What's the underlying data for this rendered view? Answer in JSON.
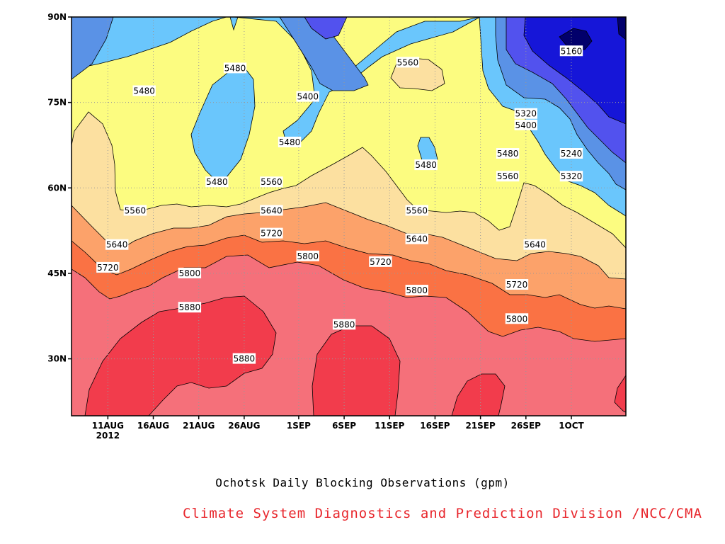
{
  "title": "Ochotsk Daily Blocking Observations (gpm)",
  "credit": "Climate System Diagnostics and Prediction Division /NCC/CMA",
  "colors": {
    "credit": "#e8262c",
    "levels": [
      "#02006b",
      "#1616d8",
      "#5252ee",
      "#5a92e6",
      "#6ac6fc",
      "#fcfc80",
      "#fce0a0",
      "#fca26a",
      "#fa7244",
      "#f5707a",
      "#f23c4c"
    ]
  },
  "chart_data": {
    "type": "contour",
    "title": "Ochotsk Daily Blocking Observations (gpm)",
    "xlabel": "",
    "ylabel": "",
    "x_ticks": [
      "11AUG",
      "16AUG",
      "21AUG",
      "26AUG",
      "1SEP",
      "6SEP",
      "11SEP",
      "16SEP",
      "21SEP",
      "26SEP",
      "1OCT"
    ],
    "x_year_label": "2012",
    "y_ticks": [
      "30N",
      "45N",
      "60N",
      "75N",
      "90N"
    ],
    "ylim": [
      20,
      90
    ],
    "grid": "dotted",
    "levels": [
      5160,
      5240,
      5320,
      5400,
      5480,
      5560,
      5640,
      5720,
      5800,
      5880
    ],
    "contour_labels": [
      {
        "value": "5160",
        "date": "2012-10-01",
        "lat": 84
      },
      {
        "value": "5240",
        "date": "2012-10-01",
        "lat": 66
      },
      {
        "value": "5320",
        "date": "2012-09-26",
        "lat": 73
      },
      {
        "value": "5320",
        "date": "2012-10-01",
        "lat": 62
      },
      {
        "value": "5400",
        "date": "2012-09-02",
        "lat": 76
      },
      {
        "value": "5400",
        "date": "2012-09-26",
        "lat": 71
      },
      {
        "value": "5480",
        "date": "2012-08-15",
        "lat": 77
      },
      {
        "value": "5480",
        "date": "2012-08-25",
        "lat": 81
      },
      {
        "value": "5480",
        "date": "2012-08-31",
        "lat": 68
      },
      {
        "value": "5480",
        "date": "2012-08-23",
        "lat": 61
      },
      {
        "value": "5480",
        "date": "2012-09-15",
        "lat": 64
      },
      {
        "value": "5480",
        "date": "2012-09-24",
        "lat": 66
      },
      {
        "value": "5560",
        "date": "2012-09-13",
        "lat": 82
      },
      {
        "value": "5560",
        "date": "2012-08-14",
        "lat": 56
      },
      {
        "value": "5560",
        "date": "2012-08-29",
        "lat": 61
      },
      {
        "value": "5560",
        "date": "2012-09-14",
        "lat": 56
      },
      {
        "value": "5560",
        "date": "2012-09-24",
        "lat": 62
      },
      {
        "value": "5640",
        "date": "2012-08-12",
        "lat": 50
      },
      {
        "value": "5640",
        "date": "2012-08-29",
        "lat": 56
      },
      {
        "value": "5640",
        "date": "2012-09-14",
        "lat": 51
      },
      {
        "value": "5640",
        "date": "2012-09-27",
        "lat": 50
      },
      {
        "value": "5720",
        "date": "2012-08-11",
        "lat": 46
      },
      {
        "value": "5720",
        "date": "2012-08-29",
        "lat": 52
      },
      {
        "value": "5720",
        "date": "2012-09-10",
        "lat": 47
      },
      {
        "value": "5720",
        "date": "2012-09-25",
        "lat": 43
      },
      {
        "value": "5800",
        "date": "2012-08-20",
        "lat": 45
      },
      {
        "value": "5800",
        "date": "2012-09-02",
        "lat": 48
      },
      {
        "value": "5800",
        "date": "2012-09-14",
        "lat": 42
      },
      {
        "value": "5800",
        "date": "2012-09-25",
        "lat": 37
      },
      {
        "value": "5880",
        "date": "2012-08-20",
        "lat": 39
      },
      {
        "value": "5880",
        "date": "2012-09-06",
        "lat": 36
      },
      {
        "value": "5880",
        "date": "2012-08-26",
        "lat": 30
      }
    ]
  }
}
